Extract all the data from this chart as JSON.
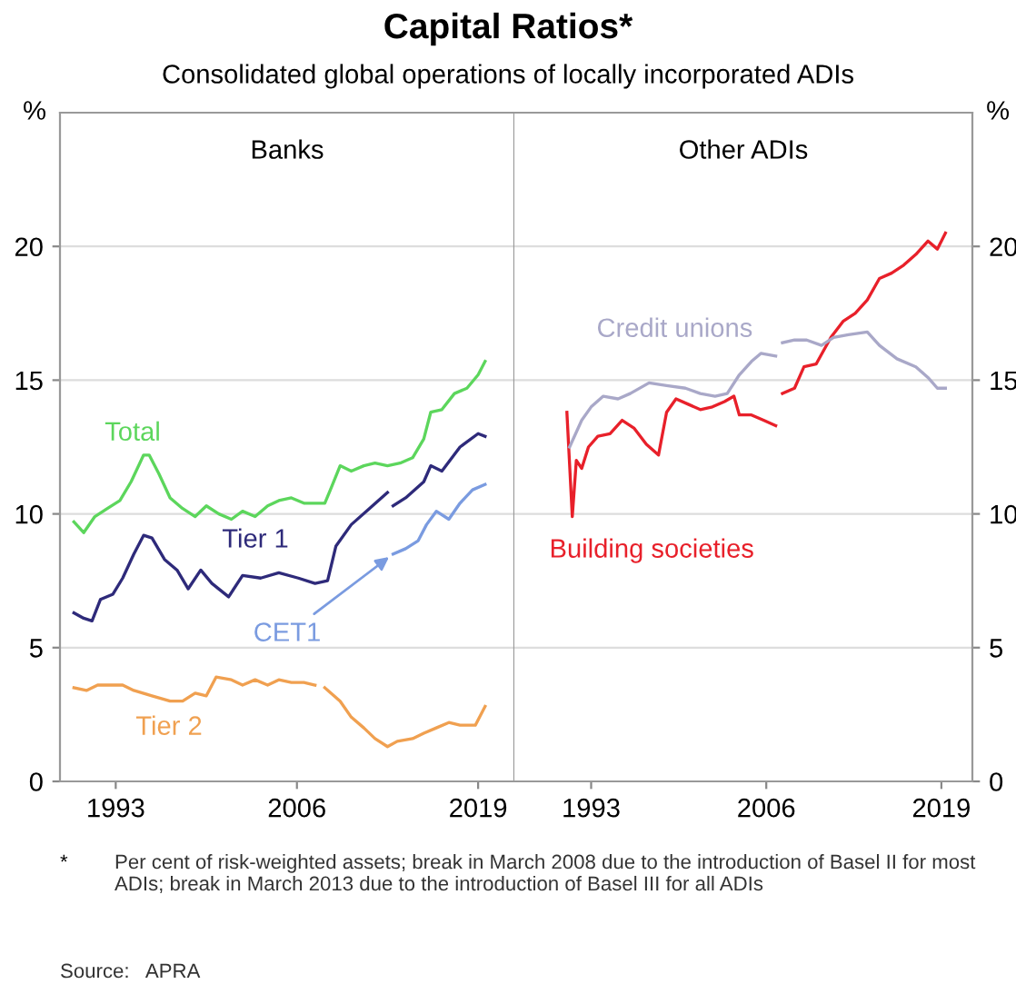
{
  "chart_data": [
    {
      "type": "line",
      "title": "Capital Ratios*",
      "subtitle": "Consolidated global operations of locally incorporated ADIs",
      "ylabel": "%",
      "legend_title": "Banks",
      "annotations": [
        "*\tPer cent of risk-weighted assets; break in March 2008 due to the introduction of Basel II for most ADIs; break in March 2013 due to the introduction of Basel III for all ADIs",
        "Source:   APRA"
      ],
      "xlim": [
        1989,
        2021.6
      ],
      "xticks": [
        1993,
        2006,
        2019
      ],
      "ylim": [
        0,
        25
      ],
      "yticks": [
        0,
        5,
        10,
        15,
        20
      ],
      "grid": "y",
      "tick_labels": "xy",
      "series": [
        {
          "name": "Total",
          "color": "#5cd65c",
          "x": [
            1990.0,
            1990.7,
            1991.5,
            1992.4,
            1993.3,
            1994.1,
            1995.0,
            1995.4,
            1996.1,
            1996.9,
            1997.8,
            1998.7,
            1999.5,
            2000.4,
            2001.3,
            2002.1,
            2003.0,
            2003.9,
            2004.7,
            2005.6,
            2006.5,
            2007.3,
            2008.0,
            2008.4,
            2009.1,
            2009.9,
            2010.8,
            2011.6,
            2012.5,
            2013.4,
            2014.3,
            2015.1,
            2015.6,
            2016.4,
            2017.3,
            2018.2,
            2019.0,
            2019.5
          ],
          "values": [
            9.7,
            9.3,
            9.9,
            10.2,
            10.5,
            11.2,
            12.2,
            12.2,
            11.5,
            10.6,
            10.2,
            9.9,
            10.3,
            10.0,
            9.8,
            10.1,
            9.9,
            10.3,
            10.5,
            10.6,
            10.4,
            10.4,
            10.4,
            10.9,
            11.8,
            11.6,
            11.8,
            11.9,
            11.8,
            11.9,
            12.1,
            12.8,
            13.8,
            13.9,
            14.5,
            14.7,
            15.2,
            15.7
          ]
        },
        {
          "name": "Tier 1",
          "color": "#2e2a7a",
          "x": [
            1990.0,
            1990.7,
            1991.3,
            1991.9,
            1992.8,
            1993.5,
            1994.3,
            1995.0,
            1995.6,
            1996.5,
            1997.4,
            1998.2,
            1999.1,
            1999.9,
            2001.1,
            2002.1,
            2003.4,
            2004.7,
            2006.1,
            2007.3,
            2008.2,
            2008.8,
            2009.9,
            2011.2,
            2012.5,
            2012.7,
            2012.9,
            2013.8,
            2015.1,
            2015.6,
            2016.4,
            2017.7,
            2019.0,
            2019.5
          ],
          "values": [
            6.3,
            6.1,
            6.0,
            6.8,
            7.0,
            7.6,
            8.5,
            9.2,
            9.1,
            8.3,
            7.9,
            7.2,
            7.9,
            7.4,
            6.9,
            7.7,
            7.6,
            7.8,
            7.6,
            7.4,
            7.5,
            8.8,
            9.6,
            10.2,
            10.8,
            null,
            10.3,
            10.6,
            11.2,
            11.8,
            11.6,
            12.5,
            13.0,
            12.9
          ]
        },
        {
          "name": "CET1",
          "color": "#7a9be0",
          "x": [
            2012.9,
            2013.8,
            2014.7,
            2015.3,
            2016.0,
            2016.9,
            2017.7,
            2018.6,
            2019.5
          ],
          "values": [
            8.5,
            8.7,
            9.0,
            9.6,
            10.1,
            9.8,
            10.4,
            10.9,
            11.1
          ]
        },
        {
          "name": "Tier 2",
          "color": "#f0a050",
          "x": [
            1990.0,
            1990.9,
            1991.7,
            1992.6,
            1993.5,
            1994.3,
            1995.6,
            1996.9,
            1997.8,
            1998.7,
            1999.5,
            2000.2,
            2001.3,
            2002.1,
            2003.0,
            2003.9,
            2004.7,
            2005.6,
            2006.5,
            2007.3,
            2007.6,
            2008.0,
            2009.1,
            2009.9,
            2010.8,
            2011.6,
            2012.5,
            2013.2,
            2014.3,
            2015.1,
            2016.0,
            2016.9,
            2017.7,
            2018.8,
            2019.5
          ],
          "values": [
            3.5,
            3.4,
            3.6,
            3.6,
            3.6,
            3.4,
            3.2,
            3.0,
            3.0,
            3.3,
            3.2,
            3.9,
            3.8,
            3.6,
            3.8,
            3.6,
            3.8,
            3.7,
            3.7,
            3.6,
            null,
            3.5,
            3.0,
            2.4,
            2.0,
            1.6,
            1.3,
            1.5,
            1.6,
            1.8,
            2.0,
            2.2,
            2.1,
            2.1,
            2.8
          ]
        }
      ]
    },
    {
      "type": "line",
      "ylabel": "%",
      "legend_title": "Other ADIs",
      "xlim": [
        1987.3,
        2021.3
      ],
      "xticks": [
        1993,
        2006,
        2019
      ],
      "ylim": [
        0,
        25
      ],
      "yticks": [
        0,
        5,
        10,
        15,
        20
      ],
      "grid": "y",
      "tick_labels": "xy",
      "series": [
        {
          "name": "Building societies",
          "color": "#e8202a",
          "x": [
            1991.2,
            1991.6,
            1991.9,
            1992.3,
            1992.8,
            1993.5,
            1994.4,
            1995.3,
            1996.2,
            1997.1,
            1998.0,
            1998.6,
            1999.3,
            2000.2,
            2001.1,
            2002.0,
            2002.9,
            2003.6,
            2004.0,
            2004.9,
            2005.8,
            2006.7,
            2007.0,
            2007.2,
            2008.1,
            2008.8,
            2009.7,
            2010.8,
            2011.7,
            2012.6,
            2013.5,
            2014.4,
            2015.3,
            2016.2,
            2017.1,
            2018.0,
            2018.7,
            2019.3
          ],
          "values": [
            13.8,
            9.9,
            12.0,
            11.7,
            12.5,
            12.9,
            13.0,
            13.5,
            13.2,
            12.6,
            12.2,
            13.8,
            14.3,
            14.1,
            13.9,
            14.0,
            14.2,
            14.4,
            13.7,
            13.7,
            13.5,
            13.3,
            null,
            14.5,
            14.7,
            15.5,
            15.6,
            16.6,
            17.2,
            17.5,
            18.0,
            18.8,
            19.0,
            19.3,
            19.7,
            20.2,
            19.9,
            20.5
          ]
        },
        {
          "name": "Credit unions",
          "color": "#a9a8c8",
          "x": [
            1991.4,
            1992.3,
            1993.0,
            1993.9,
            1995.0,
            1995.9,
            1997.3,
            1998.6,
            2000.0,
            2001.1,
            2002.2,
            2003.1,
            2004.0,
            2004.9,
            2005.6,
            2006.7,
            2007.0,
            2007.2,
            2008.1,
            2009.0,
            2010.1,
            2011.0,
            2012.1,
            2013.5,
            2014.4,
            2015.7,
            2017.1,
            2018.0,
            2018.7,
            2019.3
          ],
          "values": [
            12.5,
            13.5,
            14.0,
            14.4,
            14.3,
            14.5,
            14.9,
            14.8,
            14.7,
            14.5,
            14.4,
            14.5,
            15.2,
            15.7,
            16.0,
            15.9,
            null,
            16.4,
            16.5,
            16.5,
            16.3,
            16.6,
            16.7,
            16.8,
            16.3,
            15.8,
            15.5,
            15.1,
            14.7,
            14.7
          ]
        }
      ]
    }
  ]
}
